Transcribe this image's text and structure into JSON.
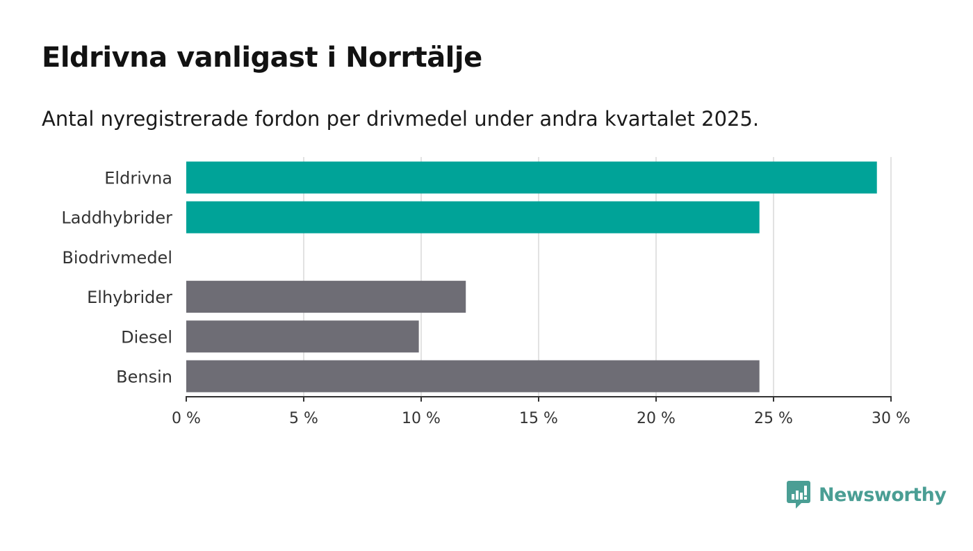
{
  "header": {
    "title": "Eldrivna vanligast i Norrtälje",
    "subtitle": "Antal nyregistrerade fordon per drivmedel under andra kvartalet 2025."
  },
  "brand": {
    "name": "Newsworthy",
    "logo_icon": "newsworthy-chart-bubble-icon",
    "color": "#4a9e94"
  },
  "colors": {
    "highlight": "#00a398",
    "default": "#6e6d75",
    "grid": "#d9d9d9",
    "axis": "#333333"
  },
  "chart_data": {
    "type": "bar",
    "orientation": "horizontal",
    "categories": [
      "Eldrivna",
      "Laddhybrider",
      "Biodrivmedel",
      "Elhybrider",
      "Diesel",
      "Bensin"
    ],
    "values": [
      29.4,
      24.4,
      0,
      11.9,
      9.9,
      24.4
    ],
    "highlighted": [
      true,
      true,
      false,
      false,
      false,
      false
    ],
    "xlim": [
      0,
      30
    ],
    "xticks": [
      0,
      5,
      10,
      15,
      20,
      25,
      30
    ],
    "xtick_labels": [
      "0 %",
      "5 %",
      "10 %",
      "15 %",
      "20 %",
      "25 %",
      "30 %"
    ],
    "grid": true
  }
}
